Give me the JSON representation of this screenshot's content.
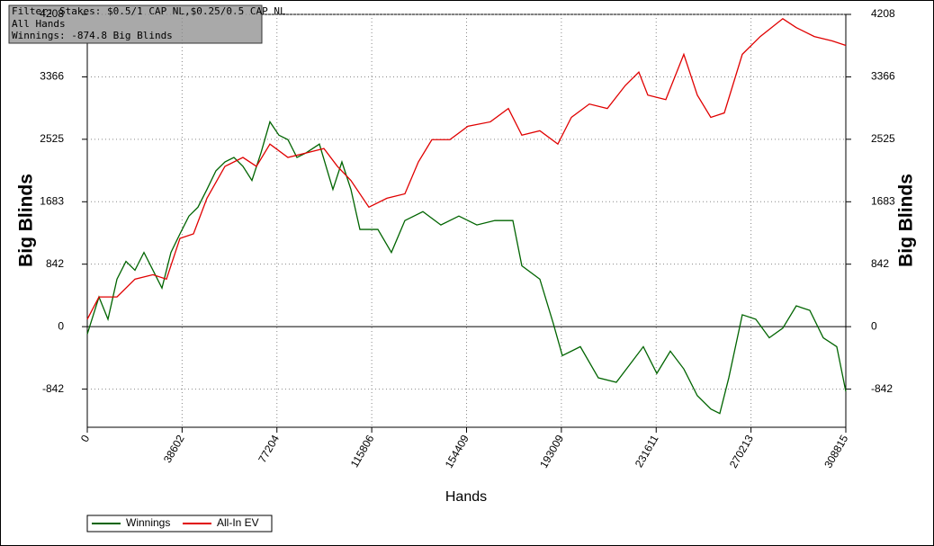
{
  "chart_data": {
    "type": "line",
    "annotations": [
      "Filter: Stakes: $0.5/1 CAP NL,$0.25/0.5 CAP NL",
      "All Hands",
      "Winnings: -874.8 Big Blinds"
    ],
    "x_label": "Hands",
    "y_label": "Big Blinds",
    "xlim": [
      0,
      308815
    ],
    "xticks": [
      0,
      38602,
      77204,
      115806,
      154409,
      193009,
      231611,
      270213,
      308815
    ],
    "ylim": [
      -1356,
      4208
    ],
    "yticks": [
      -842,
      0,
      842,
      1683,
      2525,
      3366,
      4208
    ],
    "grid": true,
    "series": [
      {
        "name": "Winnings",
        "color": "#006400",
        "x": [
          0,
          4762,
          8425,
          12088,
          15751,
          19414,
          23077,
          26740,
          30403,
          34066,
          37729,
          41392,
          45055,
          48718,
          52381,
          56044,
          59707,
          63370,
          67033,
          70696,
          74359,
          78022,
          81685,
          85348,
          89011,
          94506,
          100000,
          103663,
          107326,
          110989,
          118315,
          123809,
          129304,
          136630,
          143956,
          151282,
          158608,
          165934,
          173260,
          176923,
          184249,
          189744,
          193407,
          200733,
          208058,
          215384,
          220879,
          226373,
          231868,
          237363,
          242857,
          248352,
          253846,
          257509,
          261172,
          266667,
          272161,
          277656,
          283150,
          288645,
          294139,
          299634,
          305128,
          308815
        ],
        "values": [
          -100,
          400,
          100,
          640,
          880,
          760,
          1000,
          760,
          520,
          1000,
          1250,
          1490,
          1610,
          1850,
          2100,
          2220,
          2280,
          2160,
          1970,
          2340,
          2760,
          2580,
          2520,
          2280,
          2340,
          2460,
          1850,
          2220,
          1850,
          1310,
          1310,
          1000,
          1430,
          1550,
          1370,
          1490,
          1370,
          1430,
          1430,
          820,
          640,
          40,
          -390,
          -270,
          -690,
          -750,
          -510,
          -270,
          -630,
          -330,
          -570,
          -930,
          -1110,
          -1170,
          -690,
          160,
          100,
          -150,
          -20,
          280,
          220,
          -150,
          -270,
          -874.8
        ]
      },
      {
        "name": "All-In EV",
        "color": "#e00000",
        "x": [
          0,
          4762,
          12088,
          19414,
          26740,
          32234,
          37729,
          43224,
          48718,
          56044,
          63370,
          68864,
          74359,
          81685,
          89011,
          96337,
          101832,
          107326,
          114652,
          121978,
          129304,
          134799,
          140293,
          147619,
          154945,
          164103,
          171429,
          176923,
          184249,
          191575,
          197070,
          204396,
          211722,
          219048,
          224542,
          228205,
          235531,
          242857,
          248352,
          253846,
          259341,
          266667,
          273993,
          283150,
          288645,
          295971,
          303297,
          308815
        ],
        "values": [
          100,
          400,
          400,
          640,
          700,
          640,
          1190,
          1250,
          1730,
          2160,
          2280,
          2160,
          2460,
          2280,
          2340,
          2400,
          2160,
          1970,
          1610,
          1730,
          1790,
          2220,
          2520,
          2520,
          2700,
          2760,
          2940,
          2580,
          2640,
          2460,
          2820,
          3000,
          2940,
          3250,
          3430,
          3120,
          3060,
          3670,
          3120,
          2820,
          2880,
          3670,
          3910,
          4150,
          4030,
          3910,
          3850,
          3790
        ]
      }
    ]
  }
}
